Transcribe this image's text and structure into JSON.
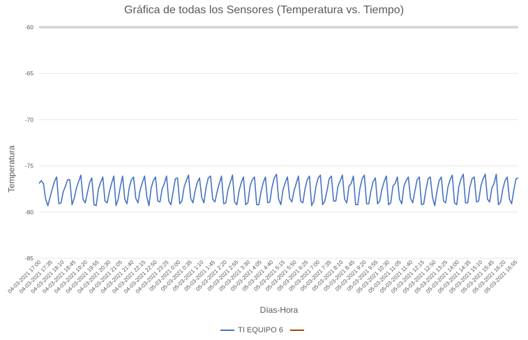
{
  "chart_data": {
    "type": "line",
    "title": "Gráfica de todas los Sensores (Temperatura vs. Tiempo)",
    "xlabel": "Días-Hora",
    "ylabel": "Temperatura",
    "ylim": [
      -85,
      -60
    ],
    "y_ticks": [
      -60,
      -65,
      -70,
      -75,
      -80,
      -85
    ],
    "grid": true,
    "legend_position": "bottom",
    "x_tick_labels": [
      "04-03-2021 17:00",
      "04-03-2021 17:35",
      "04-03-2021 18:10",
      "04-03-2021 18:45",
      "04-03-2021 19:20",
      "04-03-2021 19:55",
      "04-03-2021 20:30",
      "04-03-2021 21:05",
      "04-03-2021 21:40",
      "04-03-2021 22:15",
      "04-03-2021 22:50",
      "04-03-2021 23:25",
      "05-03-2021 0:00",
      "05-03-2021 0:35",
      "05-03-2021 1:10",
      "05-03-2021 1:45",
      "05-03-2021 2:20",
      "05-03-2021 2:55",
      "05-03-2021 3:30",
      "05-03-2021 4:05",
      "05-03-2021 4:40",
      "05-03-2021 5:15",
      "05-03-2021 5:50",
      "05-03-2021 6:25",
      "05-03-2021 7:00",
      "05-03-2021 7:35",
      "05-03-2021 8:10",
      "05-03-2021 8:45",
      "05-03-2021 9:20",
      "05-03-2021 9:55",
      "05-03-2021 10:30",
      "05-03-2021 11:05",
      "05-03-2021 11:40",
      "05-03-2021 12:15",
      "05-03-2021 12:50",
      "05-03-2021 13:25",
      "05-03-2021 14:00",
      "05-03-2021 14:35",
      "05-03-2021 15:10",
      "05-03-2021 15:45",
      "05-03-2021 16:20",
      "05-03-2021 16:55"
    ],
    "series": [
      {
        "name": "TI EQUIPO 6",
        "color": "#4472C4",
        "values": [
          -76.9,
          -76.6,
          -76.9,
          -78.6,
          -79.3,
          -78.4,
          -77.5,
          -76.7,
          -76.2,
          -79.1,
          -79.0,
          -77.8,
          -77.2,
          -76.5,
          -76.5,
          -79.2,
          -78.5,
          -77.4,
          -76.7,
          -76.0,
          -78.6,
          -79.0,
          -77.9,
          -76.8,
          -76.3,
          -79.2,
          -79.3,
          -77.5,
          -76.8,
          -76.2,
          -78.8,
          -79.0,
          -77.8,
          -76.9,
          -76.1,
          -79.3,
          -78.6,
          -77.2,
          -76.1,
          -78.6,
          -79.1,
          -77.4,
          -76.5,
          -76.2,
          -78.5,
          -79.0,
          -77.6,
          -76.8,
          -76.1,
          -78.3,
          -79.3,
          -77.4,
          -76.6,
          -76.2,
          -78.8,
          -78.9,
          -77.5,
          -76.9,
          -76.1,
          -78.8,
          -79.2,
          -77.8,
          -76.4,
          -76.3,
          -79.1,
          -78.8,
          -77.3,
          -76.6,
          -76.0,
          -78.5,
          -79.0,
          -77.7,
          -76.8,
          -76.3,
          -78.4,
          -79.0,
          -77.3,
          -76.3,
          -76.1,
          -78.6,
          -78.9,
          -77.8,
          -76.9,
          -76.1,
          -79.1,
          -79.0,
          -77.5,
          -76.8,
          -76.0,
          -78.9,
          -79.2,
          -77.7,
          -76.8,
          -76.2,
          -79.2,
          -79.0,
          -77.2,
          -76.5,
          -76.2,
          -79.2,
          -79.2,
          -77.8,
          -76.8,
          -76.2,
          -79.0,
          -78.9,
          -77.3,
          -76.3,
          -75.9,
          -78.6,
          -79.2,
          -77.6,
          -76.8,
          -76.2,
          -78.5,
          -78.9,
          -77.7,
          -76.9,
          -76.1,
          -78.8,
          -79.0,
          -77.5,
          -76.5,
          -76.1,
          -79.3,
          -78.8,
          -77.2,
          -76.3,
          -76.0,
          -79.2,
          -78.8,
          -77.7,
          -76.4,
          -76.1,
          -78.8,
          -78.8,
          -77.2,
          -76.6,
          -76.0,
          -78.6,
          -79.0,
          -77.2,
          -76.9,
          -76.1,
          -79.2,
          -79.2,
          -77.4,
          -76.4,
          -76.0,
          -79.1,
          -79.1,
          -77.7,
          -76.7,
          -76.3,
          -79.1,
          -78.8,
          -77.5,
          -76.7,
          -76.1,
          -79.2,
          -79.0,
          -77.2,
          -76.9,
          -76.2,
          -78.6,
          -79.1,
          -77.2,
          -76.6,
          -76.2,
          -78.5,
          -79.0,
          -77.7,
          -76.5,
          -76.2,
          -79.2,
          -79.1,
          -77.6,
          -76.4,
          -76.2,
          -78.4,
          -79.3,
          -77.8,
          -76.6,
          -76.2,
          -78.8,
          -79.0,
          -77.3,
          -76.5,
          -76.0,
          -79.0,
          -79.2,
          -77.2,
          -76.4,
          -75.9,
          -79.0,
          -79.0,
          -77.3,
          -76.4,
          -76.2,
          -78.9,
          -78.8,
          -77.2,
          -76.4,
          -75.9,
          -78.6,
          -78.9,
          -77.4,
          -76.9,
          -75.9,
          -79.2,
          -78.9,
          -77.5,
          -76.6,
          -76.2,
          -78.6,
          -79.1,
          -77.6,
          -76.4,
          -76.3
        ]
      },
      {
        "name": "",
        "color": "#9E480E",
        "values": []
      }
    ]
  }
}
